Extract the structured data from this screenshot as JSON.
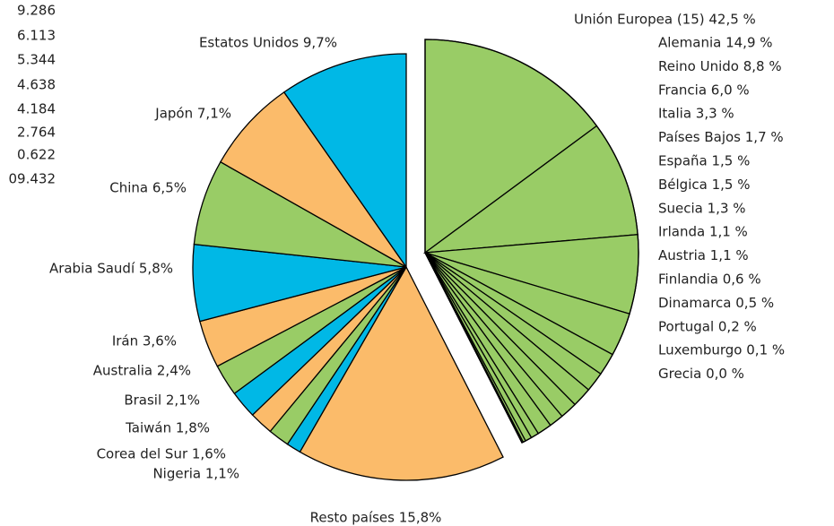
{
  "side_values": [
    "9.286",
    "6.113",
    "5.344",
    "4.638",
    "4.184",
    "2.764",
    "0.622",
    "09.432"
  ],
  "chart_data": {
    "type": "pie",
    "categories": [
      "Unión Europea (15) 42,5 %",
      "Resto países 15,8%",
      "Nigeria 1,1%",
      "Corea del Sur 1,6%",
      "Taiwán 1,8%",
      "Brasil 2,1%",
      "Australia 2,4%",
      "Irán 3,6%",
      "Arabia Saudí 5,8%",
      "China 6,5%",
      "Japón 7,1%",
      "Estatos Unidos 9,7%"
    ],
    "values": [
      42.5,
      15.8,
      1.1,
      1.6,
      1.8,
      2.1,
      2.4,
      3.6,
      5.8,
      6.5,
      7.1,
      9.7
    ],
    "colors": [
      "#99cc66",
      "#fbbb6a",
      "#00b8e6",
      "#99cc66",
      "#fbbb6a",
      "#00b8e6",
      "#99cc66",
      "#fbbb6a",
      "#00b8e6",
      "#99cc66",
      "#fbbb6a",
      "#00b8e6"
    ],
    "breakdown": {
      "categories": [
        "Alemania 14,9 %",
        "Reino Unido 8,8 %",
        "Francia 6,0 %",
        "Italia 3,3 %",
        "Países Bajos 1,7 %",
        "España 1,5 %",
        "Bélgica 1,5 %",
        "Suecia 1,3 %",
        "Irlanda 1,1 %",
        "Austria 1,1 %",
        "Finlandia 0,6 %",
        "Dinamarca 0,5 %",
        "Portugal 0,2 %",
        "Luxemburgo 0,1 %",
        "Grecia 0,0 %"
      ],
      "values": [
        14.9,
        8.8,
        6.0,
        3.3,
        1.7,
        1.5,
        1.5,
        1.3,
        1.1,
        1.1,
        0.6,
        0.5,
        0.2,
        0.1,
        0.0
      ],
      "color": "#99cc66"
    }
  }
}
